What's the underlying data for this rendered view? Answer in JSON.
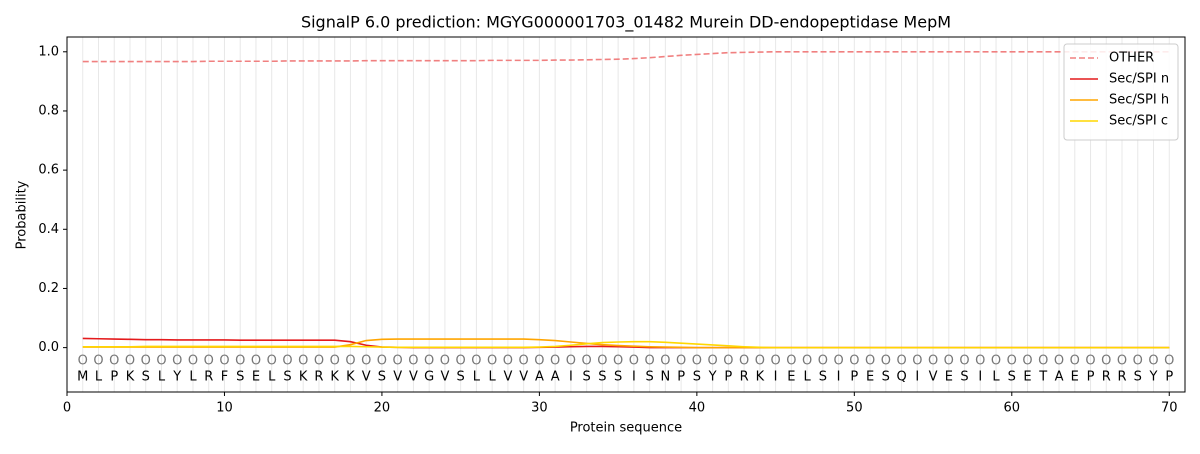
{
  "chart_data": {
    "type": "line",
    "title": "SignalP 6.0 prediction: MGYG000001703_01482 Murein DD-endopeptidase MepM",
    "x_label": "Protein sequence",
    "y_label": "Probability",
    "x": [
      1,
      2,
      3,
      4,
      5,
      6,
      7,
      8,
      9,
      10,
      11,
      12,
      13,
      14,
      15,
      16,
      17,
      18,
      19,
      20,
      21,
      22,
      23,
      24,
      25,
      26,
      27,
      28,
      29,
      30,
      31,
      32,
      33,
      34,
      35,
      36,
      37,
      38,
      39,
      40,
      41,
      42,
      43,
      44,
      45,
      46,
      47,
      48,
      49,
      50,
      51,
      52,
      53,
      54,
      55,
      56,
      57,
      58,
      59,
      60,
      61,
      62,
      63,
      64,
      65,
      66,
      67,
      68,
      69,
      70
    ],
    "sequence": [
      "M",
      "L",
      "P",
      "K",
      "S",
      "L",
      "Y",
      "L",
      "R",
      "F",
      "S",
      "E",
      "L",
      "S",
      "K",
      "R",
      "K",
      "K",
      "V",
      "S",
      "V",
      "V",
      "G",
      "V",
      "S",
      "L",
      "L",
      "V",
      "V",
      "A",
      "A",
      "I",
      "S",
      "S",
      "S",
      "I",
      "S",
      "N",
      "P",
      "S",
      "Y",
      "P",
      "R",
      "K",
      "I",
      "E",
      "L",
      "S",
      "I",
      "P",
      "E",
      "S",
      "Q",
      "I",
      "V",
      "E",
      "S",
      "I",
      "L",
      "S",
      "E",
      "T",
      "A",
      "E",
      "P",
      "R",
      "R",
      "S",
      "Y",
      "P"
    ],
    "predictions": [
      "O",
      "O",
      "O",
      "O",
      "O",
      "O",
      "O",
      "O",
      "O",
      "O",
      "O",
      "O",
      "O",
      "O",
      "O",
      "O",
      "O",
      "O",
      "O",
      "O",
      "O",
      "O",
      "O",
      "O",
      "O",
      "O",
      "O",
      "O",
      "O",
      "O",
      "O",
      "O",
      "O",
      "O",
      "O",
      "O",
      "O",
      "O",
      "O",
      "O",
      "O",
      "O",
      "O",
      "O",
      "O",
      "O",
      "O",
      "O",
      "O",
      "O",
      "O",
      "O",
      "O",
      "O",
      "O",
      "O",
      "O",
      "O",
      "O",
      "O",
      "O",
      "O",
      "O",
      "O",
      "O",
      "O",
      "O",
      "O",
      "O",
      "O"
    ],
    "series": [
      {
        "name": "OTHER",
        "color": "#f08080",
        "linestyle": "dashed",
        "values": [
          0.967,
          0.967,
          0.967,
          0.967,
          0.967,
          0.967,
          0.967,
          0.967,
          0.968,
          0.968,
          0.968,
          0.968,
          0.968,
          0.969,
          0.969,
          0.969,
          0.969,
          0.969,
          0.97,
          0.97,
          0.97,
          0.97,
          0.97,
          0.97,
          0.97,
          0.97,
          0.971,
          0.971,
          0.971,
          0.971,
          0.972,
          0.972,
          0.973,
          0.974,
          0.975,
          0.977,
          0.98,
          0.984,
          0.988,
          0.991,
          0.994,
          0.997,
          0.998,
          0.999,
          1.0,
          1.0,
          1.0,
          1.0,
          1.0,
          1.0,
          1.0,
          1.0,
          1.0,
          1.0,
          1.0,
          1.0,
          1.0,
          1.0,
          1.0,
          1.0,
          1.0,
          1.0,
          1.0,
          1.0,
          1.0,
          1.0,
          1.0,
          1.0,
          1.0,
          1.0
        ]
      },
      {
        "name": "Sec/SPI n",
        "color": "#e41a1c",
        "linestyle": "solid",
        "values": [
          0.031,
          0.03,
          0.029,
          0.028,
          0.027,
          0.027,
          0.026,
          0.026,
          0.026,
          0.026,
          0.025,
          0.025,
          0.025,
          0.025,
          0.025,
          0.025,
          0.025,
          0.02,
          0.008,
          0.002,
          0.001,
          0,
          0,
          0,
          0,
          0,
          0,
          0,
          0,
          0.001,
          0.002,
          0.003,
          0.004,
          0.004,
          0.003,
          0.002,
          0,
          0,
          0,
          0,
          0,
          0,
          0,
          0,
          0,
          0,
          0,
          0,
          0,
          0,
          0,
          0,
          0,
          0,
          0,
          0,
          0,
          0,
          0,
          0,
          0,
          0,
          0,
          0,
          0,
          0,
          0,
          0,
          0,
          0
        ]
      },
      {
        "name": "Sec/SPI h",
        "color": "#ffa500",
        "linestyle": "solid",
        "values": [
          0.002,
          0.002,
          0.002,
          0.002,
          0.002,
          0.002,
          0.002,
          0.002,
          0.002,
          0.002,
          0.002,
          0.002,
          0.002,
          0.002,
          0.002,
          0.002,
          0.002,
          0.01,
          0.024,
          0.028,
          0.029,
          0.029,
          0.029,
          0.029,
          0.029,
          0.029,
          0.029,
          0.029,
          0.029,
          0.027,
          0.024,
          0.019,
          0.014,
          0.01,
          0.007,
          0.005,
          0.003,
          0.002,
          0.001,
          0,
          0,
          0,
          0,
          0,
          0,
          0,
          0,
          0,
          0,
          0,
          0,
          0,
          0,
          0,
          0,
          0,
          0,
          0,
          0,
          0,
          0,
          0,
          0,
          0,
          0,
          0,
          0,
          0,
          0,
          0
        ]
      },
      {
        "name": "Sec/SPI c",
        "color": "#ffd700",
        "linestyle": "solid",
        "values": [
          0.003,
          0.003,
          0.003,
          0.003,
          0.004,
          0.004,
          0.004,
          0.004,
          0.004,
          0.004,
          0.004,
          0.004,
          0.004,
          0.004,
          0.004,
          0.004,
          0.004,
          0.004,
          0.003,
          0.002,
          0.001,
          0.001,
          0.001,
          0.001,
          0.001,
          0.001,
          0.001,
          0.001,
          0.001,
          0.002,
          0.004,
          0.008,
          0.013,
          0.017,
          0.019,
          0.02,
          0.02,
          0.018,
          0.015,
          0.012,
          0.009,
          0.006,
          0.003,
          0.001,
          0,
          0,
          0,
          0,
          0,
          0,
          0,
          0,
          0,
          0,
          0,
          0,
          0,
          0,
          0,
          0,
          0,
          0,
          0,
          0,
          0,
          0,
          0,
          0,
          0,
          0
        ]
      }
    ],
    "xlim": [
      0,
      71
    ],
    "ylim": [
      -0.15,
      1.05
    ],
    "xticks": [
      0,
      10,
      20,
      30,
      40,
      50,
      60,
      70
    ],
    "yticks": [
      {
        "value": 0,
        "label": "0.0"
      },
      {
        "value": 0.2,
        "label": "0.2"
      },
      {
        "value": 0.4,
        "label": "0.4"
      },
      {
        "value": 0.6,
        "label": "0.6"
      },
      {
        "value": 0.8,
        "label": "0.8"
      },
      {
        "value": 1,
        "label": "1.0"
      }
    ],
    "grid": true,
    "legend": "upper right"
  }
}
